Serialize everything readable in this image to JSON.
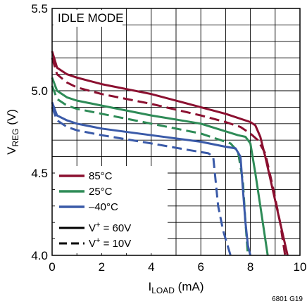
{
  "chart_data": {
    "type": "line",
    "annotation": "IDLE MODE",
    "xlabel": {
      "main": "I",
      "sub": "LOAD",
      "unit": " (mA)"
    },
    "ylabel": {
      "main": "V",
      "sub": "REG",
      "unit": " (V)"
    },
    "figure_id": "6801 G19",
    "xlim": [
      0,
      10
    ],
    "ylim": [
      4.0,
      5.5
    ],
    "x_ticks": [
      "0",
      "2",
      "4",
      "6",
      "8",
      "10"
    ],
    "y_ticks": [
      "4.0",
      "4.5",
      "5.0",
      "5.5"
    ],
    "grid": true,
    "legend_temps": [
      {
        "label": "85°C",
        "color": "#8b1030"
      },
      {
        "label": "25°C",
        "color": "#2e8b57"
      },
      {
        "label": "–40°C",
        "color": "#3a5aa8"
      }
    ],
    "legend_styles": [
      {
        "pre": "V",
        "sup": "+",
        "post": " = 60V",
        "dash": "solid"
      },
      {
        "pre": "V",
        "sup": "+",
        "post": " = 10V",
        "dash": "dashed"
      }
    ],
    "series": [
      {
        "temp": "85°C",
        "vplus": "60V",
        "color": "#8b1030",
        "dash": "solid",
        "points": [
          [
            0,
            5.24
          ],
          [
            0.2,
            5.14
          ],
          [
            0.6,
            5.1
          ],
          [
            1,
            5.08
          ],
          [
            2,
            5.04
          ],
          [
            4,
            4.98
          ],
          [
            6,
            4.9
          ],
          [
            7,
            4.86
          ],
          [
            8.0,
            4.81
          ],
          [
            8.2,
            4.79
          ],
          [
            8.4,
            4.72
          ],
          [
            8.6,
            4.6
          ],
          [
            8.9,
            4.4
          ],
          [
            9.2,
            4.2
          ],
          [
            9.5,
            4.0
          ]
        ]
      },
      {
        "temp": "85°C",
        "vplus": "10V",
        "color": "#8b1030",
        "dash": "dashed",
        "points": [
          [
            0,
            5.2
          ],
          [
            0.2,
            5.1
          ],
          [
            0.6,
            5.05
          ],
          [
            1,
            5.02
          ],
          [
            2,
            4.98
          ],
          [
            4,
            4.92
          ],
          [
            6,
            4.85
          ],
          [
            7,
            4.81
          ],
          [
            7.6,
            4.78
          ],
          [
            8,
            4.74
          ],
          [
            8.3,
            4.7
          ],
          [
            8.6,
            4.62
          ],
          [
            8.9,
            4.42
          ],
          [
            9.2,
            4.2
          ],
          [
            9.4,
            4.0
          ]
        ]
      },
      {
        "temp": "25°C",
        "vplus": "60V",
        "color": "#2e8b57",
        "dash": "solid",
        "points": [
          [
            0,
            5.08
          ],
          [
            0.2,
            5.0
          ],
          [
            0.6,
            4.96
          ],
          [
            1,
            4.94
          ],
          [
            2,
            4.91
          ],
          [
            4,
            4.85
          ],
          [
            6,
            4.8
          ],
          [
            7.5,
            4.73
          ],
          [
            7.8,
            4.72
          ],
          [
            8.0,
            4.68
          ],
          [
            8.2,
            4.5
          ],
          [
            8.4,
            4.3
          ],
          [
            8.6,
            4.1
          ],
          [
            8.7,
            4.0
          ]
        ]
      },
      {
        "temp": "25°C",
        "vplus": "10V",
        "color": "#2e8b57",
        "dash": "dashed",
        "points": [
          [
            0,
            5.03
          ],
          [
            0.2,
            4.95
          ],
          [
            0.6,
            4.91
          ],
          [
            1,
            4.89
          ],
          [
            2,
            4.86
          ],
          [
            4,
            4.8
          ],
          [
            6,
            4.74
          ],
          [
            7.2,
            4.68
          ],
          [
            7.5,
            4.63
          ],
          [
            7.7,
            4.45
          ],
          [
            7.8,
            4.2
          ],
          [
            7.9,
            4.0
          ]
        ]
      },
      {
        "temp": "–40°C",
        "vplus": "60V",
        "color": "#3a5aa8",
        "dash": "solid",
        "points": [
          [
            0,
            4.93
          ],
          [
            0.2,
            4.85
          ],
          [
            0.6,
            4.82
          ],
          [
            1,
            4.8
          ],
          [
            2,
            4.77
          ],
          [
            4,
            4.73
          ],
          [
            6,
            4.69
          ],
          [
            7,
            4.66
          ],
          [
            7.4,
            4.65
          ],
          [
            7.6,
            4.6
          ],
          [
            7.7,
            4.4
          ],
          [
            7.8,
            4.2
          ],
          [
            7.9,
            4.06
          ],
          [
            8.0,
            4.0
          ]
        ]
      },
      {
        "temp": "–40°C",
        "vplus": "10V",
        "color": "#3a5aa8",
        "dash": "dashed",
        "points": [
          [
            0,
            4.9
          ],
          [
            0.2,
            4.82
          ],
          [
            0.6,
            4.78
          ],
          [
            1,
            4.76
          ],
          [
            2,
            4.73
          ],
          [
            4,
            4.68
          ],
          [
            5.5,
            4.64
          ],
          [
            6.3,
            4.62
          ],
          [
            6.5,
            4.6
          ],
          [
            6.6,
            4.45
          ],
          [
            6.7,
            4.3
          ],
          [
            6.9,
            4.15
          ],
          [
            7.1,
            4.05
          ],
          [
            7.2,
            4.0
          ]
        ]
      }
    ]
  }
}
